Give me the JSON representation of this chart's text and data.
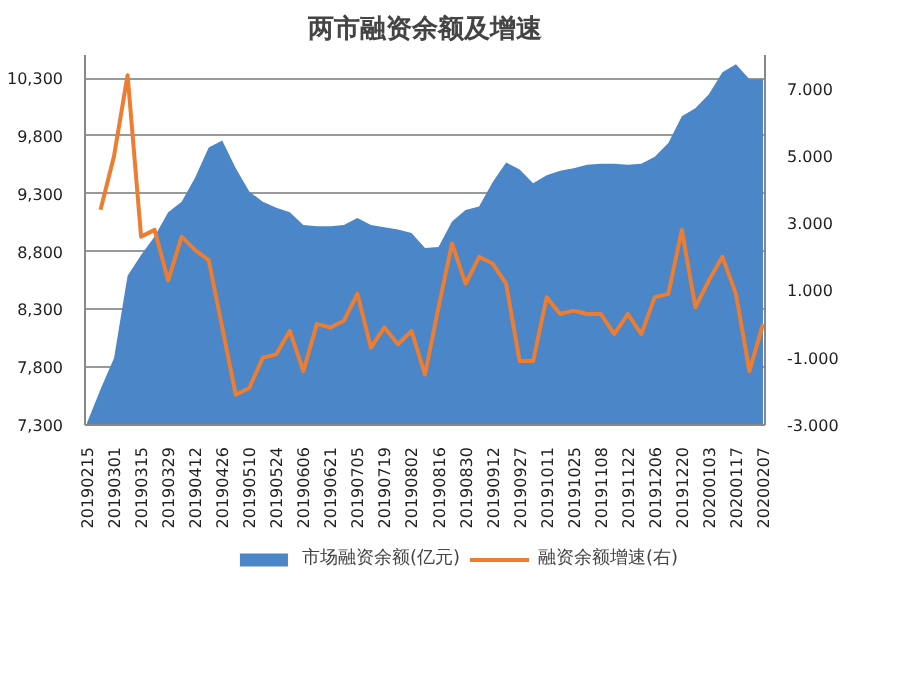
{
  "chart_data": {
    "type": "area",
    "title": "两市融资余额及增速",
    "categories": [
      "20190215",
      null,
      "20190301",
      null,
      "20190315",
      null,
      "20190329",
      null,
      "20190412",
      null,
      "20190426",
      null,
      "20190510",
      null,
      "20190524",
      null,
      "20190606",
      null,
      "20190621",
      null,
      "20190705",
      null,
      "20190719",
      null,
      "20190802",
      null,
      "20190816",
      null,
      "20190830",
      null,
      "20190912",
      null,
      "20190927",
      null,
      "20191011",
      null,
      "20191025",
      null,
      "20191108",
      null,
      "20191122",
      null,
      "20191206",
      null,
      "20191220",
      null,
      "20200103",
      null,
      "20200117",
      null,
      "20200207"
    ],
    "series": [
      {
        "name": "市场融资余额(亿元)",
        "color": "#4a86c8",
        "values": [
          7320,
          7610,
          7880,
          8590,
          8770,
          8930,
          9140,
          9230,
          9440,
          9700,
          9760,
          9520,
          9320,
          9230,
          9180,
          9140,
          9030,
          9020,
          9020,
          9030,
          9090,
          9030,
          9010,
          8990,
          8960,
          8830,
          8840,
          9060,
          9160,
          9190,
          9400,
          9570,
          9510,
          9390,
          9460,
          9500,
          9520,
          9550,
          9560,
          9560,
          9550,
          9560,
          9620,
          9740,
          9970,
          10040,
          10160,
          10350,
          10420,
          10290,
          10290
        ]
      },
      {
        "name": "融资余额增速(右)",
        "type": "line",
        "axis": "y2",
        "color": "#ed7d31",
        "values": [
          null,
          3.4,
          5.0,
          7.4,
          2.6,
          2.8,
          1.3,
          2.6,
          2.2,
          1.9,
          -0.1,
          -2.1,
          -1.9,
          -1.0,
          -0.9,
          -0.2,
          -1.4,
          0.0,
          -0.1,
          0.1,
          0.9,
          -0.7,
          -0.1,
          -0.6,
          -0.2,
          -1.5,
          0.5,
          2.4,
          1.2,
          2.0,
          1.8,
          1.2,
          -1.1,
          -1.1,
          0.8,
          0.3,
          0.4,
          0.3,
          0.3,
          -0.3,
          0.3,
          -0.3,
          0.8,
          0.9,
          2.8,
          0.5,
          1.3,
          2.0,
          0.9,
          -1.4,
          0.0
        ]
      }
    ],
    "ylim": [
      7300,
      10500
    ],
    "yticks": [
      {
        "value": 7300,
        "label": "7,300"
      },
      {
        "value": 7800,
        "label": "7,800"
      },
      {
        "value": 8300,
        "label": "8,300"
      },
      {
        "value": 8800,
        "label": "8,800"
      },
      {
        "value": 9300,
        "label": "9,300"
      },
      {
        "value": 9800,
        "label": "9,800"
      },
      {
        "value": 10300,
        "label": "10,300"
      }
    ],
    "y2lim": [
      -3,
      8
    ],
    "y2ticks": [
      {
        "value": -3,
        "label": "-3.000"
      },
      {
        "value": -1,
        "label": "-1.000"
      },
      {
        "value": 1,
        "label": "1.000"
      },
      {
        "value": 3,
        "label": "3.000"
      },
      {
        "value": 5,
        "label": "5.000"
      },
      {
        "value": 7,
        "label": "7.000"
      }
    ],
    "grid": "y",
    "legend": "bottom",
    "line_style": "solid",
    "marker": "none"
  }
}
